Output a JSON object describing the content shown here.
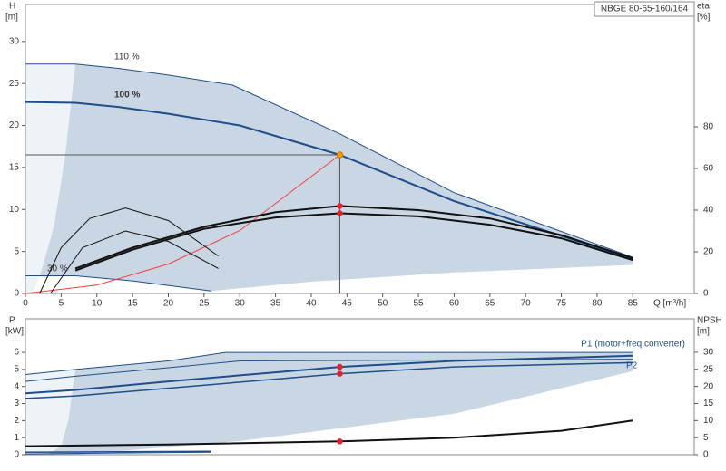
{
  "chart_data": [
    {
      "type": "line",
      "title": "NBGE 80-65-160/164",
      "ylabel": "H",
      "yunit": "[m]",
      "y2label": "eta",
      "y2unit": "[%]",
      "xlabel": "Q [m³/h]",
      "xlim": [
        0,
        93.6
      ],
      "xticks": [
        0,
        5,
        10,
        15,
        20,
        25,
        30,
        35,
        40,
        45,
        50,
        55,
        60,
        65,
        70,
        75,
        80,
        85
      ],
      "ylim": [
        0,
        34.4
      ],
      "yticks": [
        0,
        5,
        10,
        15,
        20,
        25,
        30
      ],
      "y2lim": [
        0,
        138.7
      ],
      "y2ticks": [
        0,
        20,
        40,
        60,
        80
      ],
      "areas": [
        {
          "color": "#eef3f8",
          "x": [
            0,
            0,
            7,
            5.5,
            4,
            2,
            1
          ],
          "values": [
            0,
            27.3,
            27.3,
            16,
            8,
            2,
            0
          ]
        },
        {
          "color": "#c9d6e3",
          "x": [
            2,
            4,
            5.5,
            7,
            13,
            20,
            29,
            44,
            60,
            85,
            85,
            60,
            40,
            26,
            15,
            7
          ],
          "values": [
            2,
            8,
            16,
            27.3,
            26.8,
            26,
            24.8,
            19,
            12,
            4.3,
            3.4,
            2.5,
            1.4,
            0.3,
            1.5,
            2.1
          ]
        }
      ],
      "series": [
        {
          "name": "110 %",
          "color": "#1f4e8a",
          "width": 1,
          "x": [
            0,
            7,
            13,
            20,
            29,
            44,
            60,
            85
          ],
          "values": [
            27.3,
            27.3,
            26.8,
            26,
            24.8,
            19,
            12,
            4.3
          ]
        },
        {
          "name": "100 %",
          "color": "#1f4e8a",
          "width": 2,
          "x": [
            0,
            7,
            13,
            20,
            30,
            44,
            60,
            85
          ],
          "values": [
            22.8,
            22.7,
            22.2,
            21.4,
            20,
            16.5,
            11,
            4.1
          ]
        },
        {
          "name": "30 %",
          "color": "#1f4e8a",
          "width": 1,
          "x": [
            0,
            7,
            15,
            26
          ],
          "values": [
            2.1,
            2.1,
            1.5,
            0.3
          ]
        },
        {
          "color": "#ff3b3b",
          "width": 1,
          "x": [
            0,
            10,
            20,
            30,
            44
          ],
          "values": [
            0,
            1,
            3.5,
            7.5,
            16.5
          ]
        },
        {
          "color": "#111111",
          "width": 2,
          "axis": "y2",
          "x": [
            7,
            15,
            25,
            35,
            44,
            55,
            65,
            75,
            85
          ],
          "values": [
            12,
            22,
            32,
            39,
            42,
            40,
            36,
            28,
            17
          ]
        },
        {
          "color": "#111111",
          "width": 2,
          "axis": "y2",
          "x": [
            7,
            15,
            25,
            35,
            44,
            55,
            65,
            75,
            85
          ],
          "values": [
            11,
            21,
            31,
            36.5,
            38.5,
            37,
            33,
            26.5,
            16
          ]
        },
        {
          "color": "#111111",
          "width": 1,
          "axis": "y2",
          "x": [
            2,
            5,
            9,
            14,
            20,
            27
          ],
          "values": [
            0,
            22,
            36,
            41,
            35,
            18
          ]
        },
        {
          "color": "#111111",
          "width": 1,
          "axis": "y2",
          "x": [
            3.5,
            8,
            14,
            20,
            27
          ],
          "values": [
            0,
            22,
            30,
            25,
            12
          ]
        }
      ],
      "points": [
        {
          "x": 44,
          "y": 16.5,
          "color": "#f5a000",
          "guides": true
        },
        {
          "x": 44,
          "y": 42,
          "axis": "y2",
          "color": "#e8202a"
        },
        {
          "x": 44,
          "y": 38.5,
          "axis": "y2",
          "color": "#e8202a"
        }
      ]
    },
    {
      "type": "line",
      "ylabel": "P",
      "yunit": "[kW]",
      "y2label": "NPSH",
      "y2unit": "[m]",
      "xlim": [
        0,
        93.6
      ],
      "ylim": [
        0,
        7.97
      ],
      "yticks": [
        0,
        1,
        2,
        3,
        4,
        5,
        6
      ],
      "y2lim": [
        0,
        39.8
      ],
      "y2ticks": [
        0,
        5,
        10,
        15,
        20,
        25,
        30
      ],
      "areas": [
        {
          "color": "#eef3f8",
          "x": [
            0,
            0,
            7,
            6,
            5,
            3
          ],
          "values": [
            0,
            4.7,
            5.0,
            2,
            0.5,
            0
          ]
        },
        {
          "color": "#c9d6e3",
          "x": [
            3,
            5,
            6,
            7,
            20,
            28,
            85,
            85,
            60,
            30,
            7
          ],
          "values": [
            0,
            0.5,
            2,
            5.0,
            5.5,
            6,
            6,
            4.9,
            2.4,
            0.8,
            0
          ]
        }
      ],
      "series": [
        {
          "name": "P1 (motor+freq.converter)",
          "color": "#1f4e8a",
          "width": 2,
          "x": [
            0,
            7,
            20,
            44,
            60,
            85
          ],
          "values": [
            3.6,
            3.8,
            4.3,
            5.15,
            5.5,
            5.8
          ]
        },
        {
          "name": "P2",
          "color": "#1f4e8a",
          "width": 1.5,
          "x": [
            0,
            7,
            20,
            44,
            60,
            85
          ],
          "values": [
            3.3,
            3.45,
            3.9,
            4.75,
            5.15,
            5.4
          ]
        },
        {
          "color": "#1f4e8a",
          "width": 1,
          "x": [
            0,
            7,
            20,
            28,
            85
          ],
          "values": [
            4.7,
            5.0,
            5.5,
            6.0,
            6.0
          ]
        },
        {
          "color": "#1f4e8a",
          "width": 1,
          "x": [
            0,
            7,
            20,
            30,
            85
          ],
          "values": [
            4.3,
            4.6,
            5.1,
            5.5,
            5.6
          ]
        },
        {
          "color": "#1f4e8a",
          "width": 1.5,
          "x": [
            0,
            26
          ],
          "values": [
            0.15,
            0.2
          ]
        },
        {
          "color": "#1f4e8a",
          "width": 1,
          "x": [
            0,
            26
          ],
          "values": [
            0.05,
            0.15
          ]
        },
        {
          "color": "#111111",
          "width": 2,
          "axis": "y2",
          "x": [
            0,
            20,
            44,
            60,
            75,
            85
          ],
          "values": [
            2.5,
            3,
            3.9,
            5,
            7,
            10
          ]
        }
      ],
      "points": [
        {
          "x": 44,
          "y": 5.15,
          "color": "#e8202a"
        },
        {
          "x": 44,
          "y": 4.75,
          "color": "#e8202a"
        },
        {
          "x": 44,
          "y": 3.9,
          "axis": "y2",
          "color": "#e8202a"
        }
      ]
    }
  ]
}
